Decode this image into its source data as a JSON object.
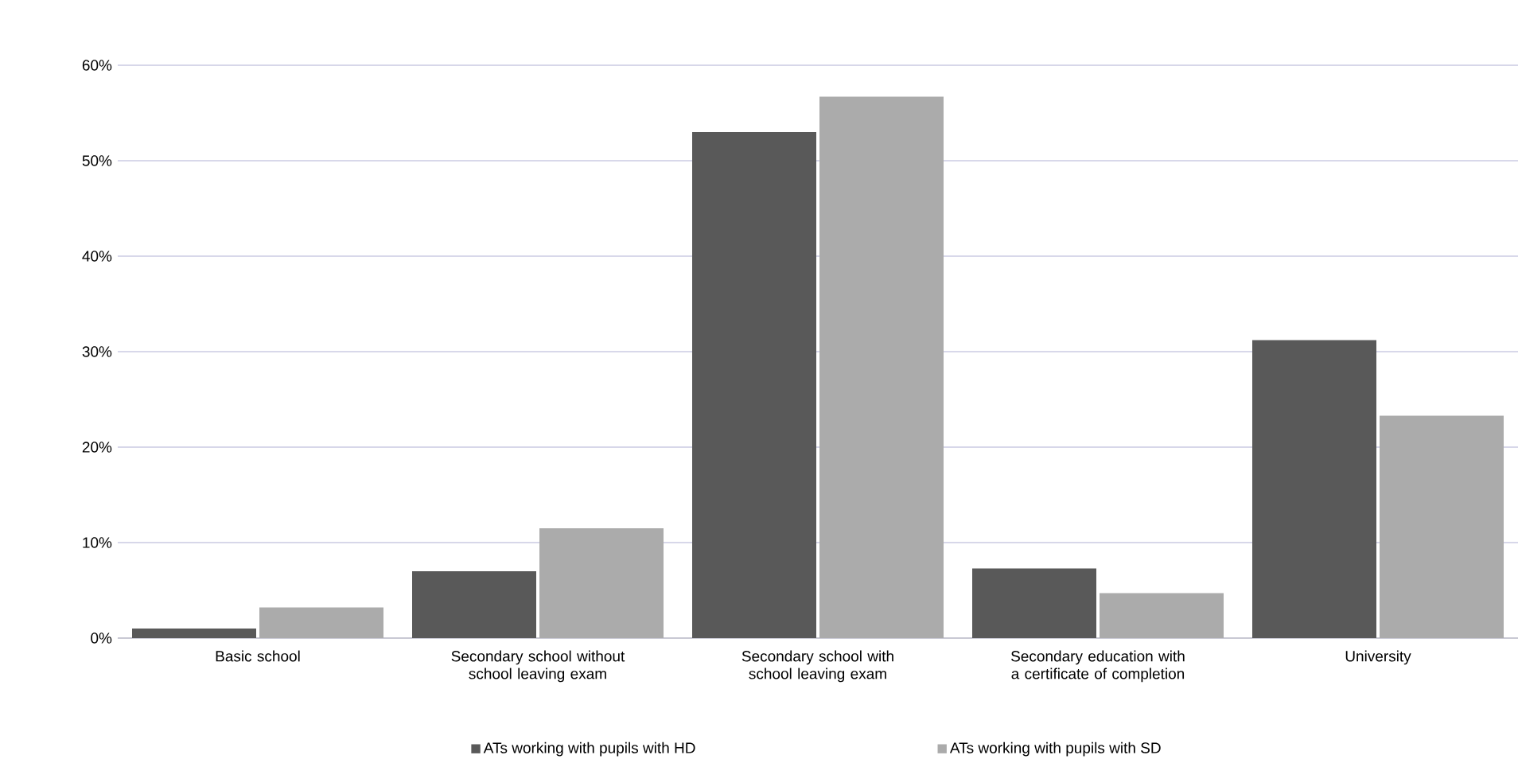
{
  "chart_data": {
    "type": "bar",
    "categories": [
      "Basic school",
      "Secondary school without school leaving exam",
      "Secondary school with school leaving exam",
      "Secondary education with a certificate of completion",
      "University"
    ],
    "series": [
      {
        "name": "ATs working with pupils with HD",
        "color": "#595959",
        "values": [
          1.0,
          7.0,
          53.0,
          7.3,
          31.2
        ]
      },
      {
        "name": "ATs working with pupils with SD",
        "color": "#ababab",
        "values": [
          3.2,
          11.5,
          56.7,
          4.7,
          23.3
        ]
      }
    ],
    "ylim": [
      0,
      60
    ],
    "yticks": [
      {
        "value": 0,
        "label": "0%"
      },
      {
        "value": 10,
        "label": "10%"
      },
      {
        "value": 20,
        "label": "20%"
      },
      {
        "value": 30,
        "label": "30%"
      },
      {
        "value": 40,
        "label": "40%"
      },
      {
        "value": 50,
        "label": "50%"
      },
      {
        "value": 60,
        "label": "60%"
      }
    ],
    "grid": "y",
    "legend": "bottom"
  }
}
